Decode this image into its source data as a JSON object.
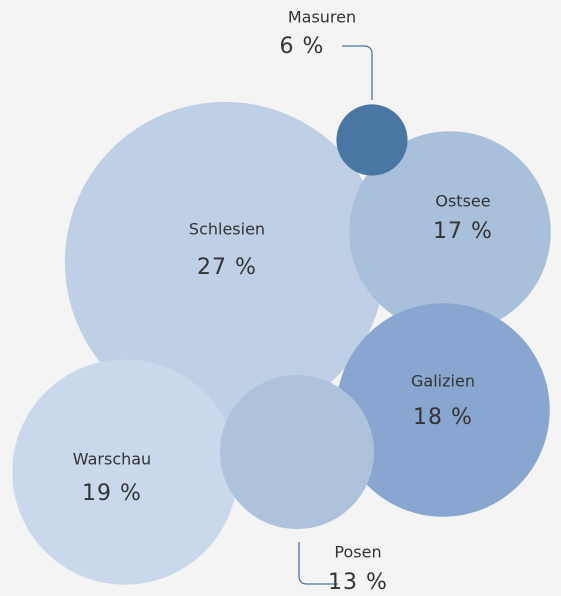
{
  "chart_data": {
    "type": "bubble",
    "categories": [
      "Schlesien",
      "Ostsee",
      "Galizien",
      "Warschau",
      "Posen",
      "Masuren"
    ],
    "values": [
      27,
      17,
      18,
      19,
      13,
      6
    ],
    "value_labels": [
      "27 %",
      "17 %",
      "18 %",
      "19 %",
      "13 %",
      "6 %"
    ],
    "colors": [
      "#bfcfe6",
      "#a9c0da",
      "#88a6cf",
      "#c9d8ea",
      "#aec2dc",
      "#4a76a3"
    ]
  }
}
